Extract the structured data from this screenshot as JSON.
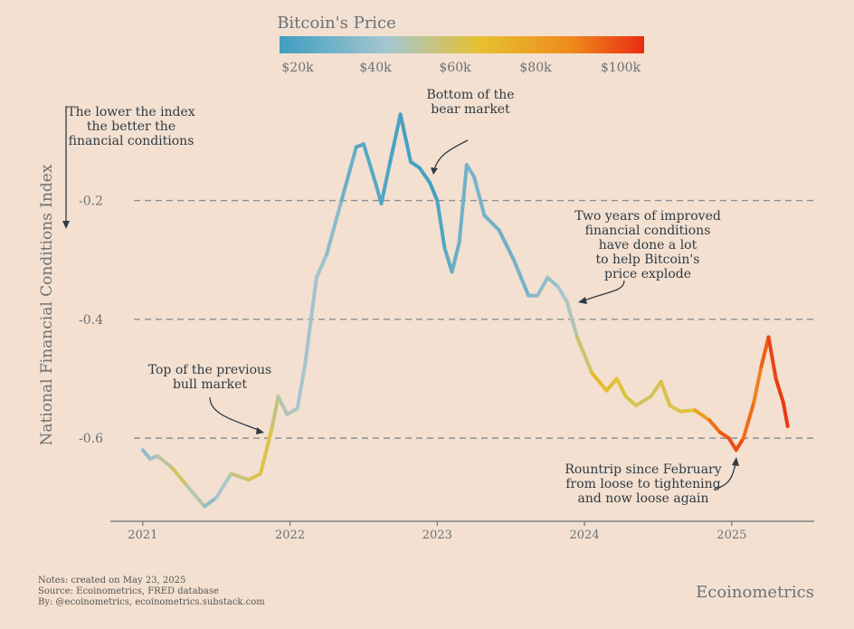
{
  "chart_data": {
    "type": "line",
    "title": "",
    "xlabel": "",
    "ylabel": "National Financial Conditions Index",
    "ylim": [
      -0.74,
      -0.03
    ],
    "xlim": [
      2020.78,
      2025.56
    ],
    "x_ticks": [
      "2021",
      "2022",
      "2023",
      "2024",
      "2025"
    ],
    "y_ticks": [
      "-0.2",
      "-0.4",
      "-0.6"
    ],
    "grid": "horizontal dashed at -0.2, -0.4, -0.6",
    "color_scale": {
      "title": "Bitcoin's Price",
      "labels": [
        "$20k",
        "$40k",
        "$60k",
        "$80k",
        "$100k"
      ],
      "colors": [
        "#3e9ec1",
        "#a6c6cf",
        "#e6c130",
        "#f08a1c",
        "#e92c11"
      ]
    },
    "series": [
      {
        "x": [
          2021.0,
          2021.05,
          2021.1,
          2021.2,
          2021.3,
          2021.42,
          2021.5,
          2021.6,
          2021.72,
          2021.8,
          2021.88,
          2021.92,
          2021.98,
          2022.05,
          2022.1,
          2022.18,
          2022.25,
          2022.35,
          2022.45,
          2022.5,
          2022.58,
          2022.62,
          2022.68,
          2022.75,
          2022.82,
          2022.88,
          2022.95,
          2023.0,
          2023.05,
          2023.1,
          2023.15,
          2023.2,
          2023.25,
          2023.32,
          2023.42,
          2023.52,
          2023.62,
          2023.68,
          2023.75,
          2023.82,
          2023.88,
          2023.95,
          2024.05,
          2024.15,
          2024.22,
          2024.28,
          2024.35,
          2024.45,
          2024.52,
          2024.58,
          2024.65,
          2024.75,
          2024.85,
          2024.92,
          2024.98,
          2025.03,
          2025.08,
          2025.15,
          2025.2,
          2025.25,
          2025.3,
          2025.35,
          2025.38
        ],
        "y": [
          -0.62,
          -0.635,
          -0.63,
          -0.65,
          -0.68,
          -0.715,
          -0.7,
          -0.66,
          -0.67,
          -0.66,
          -0.58,
          -0.53,
          -0.56,
          -0.55,
          -0.48,
          -0.33,
          -0.29,
          -0.2,
          -0.11,
          -0.105,
          -0.17,
          -0.205,
          -0.135,
          -0.055,
          -0.135,
          -0.145,
          -0.17,
          -0.2,
          -0.28,
          -0.32,
          -0.27,
          -0.14,
          -0.16,
          -0.225,
          -0.25,
          -0.3,
          -0.36,
          -0.36,
          -0.33,
          -0.345,
          -0.37,
          -0.43,
          -0.49,
          -0.52,
          -0.5,
          -0.53,
          -0.545,
          -0.53,
          -0.505,
          -0.545,
          -0.555,
          -0.553,
          -0.57,
          -0.59,
          -0.6,
          -0.62,
          -0.6,
          -0.54,
          -0.48,
          -0.43,
          -0.5,
          -0.54,
          -0.58
        ],
        "price_k": [
          32,
          36,
          40,
          55,
          58,
          34,
          35,
          47,
          58,
          62,
          60,
          46,
          45,
          42,
          38,
          40,
          37,
          30,
          21,
          20,
          23,
          20,
          19,
          17,
          17,
          18,
          16,
          17,
          22,
          24,
          26,
          28,
          30,
          28,
          27,
          26,
          30,
          34,
          35,
          37,
          42,
          45,
          66,
          70,
          64,
          62,
          60,
          57,
          60,
          62,
          60,
          65,
          90,
          95,
          100,
          102,
          100,
          85,
          90,
          103,
          105,
          106,
          108
        ]
      }
    ],
    "annotations": [
      {
        "id": "index",
        "lines": [
          "The lower the index",
          "the better the",
          "financial conditions"
        ]
      },
      {
        "id": "bottom",
        "lines": [
          "Bottom of the",
          "bear market"
        ]
      },
      {
        "id": "improved",
        "lines": [
          "Two years of improved",
          "financial conditions",
          "have done a lot",
          "to help Bitcoin's",
          "price explode"
        ]
      },
      {
        "id": "top",
        "lines": [
          "Top of the previous",
          "bull market"
        ]
      },
      {
        "id": "roundtrip",
        "lines": [
          "Rountrip since February",
          "from loose to tightening",
          "and now loose again"
        ]
      }
    ]
  },
  "footer": {
    "notes": "Notes: created on May 23, 2025",
    "source": "Source: Ecoinometrics, FRED database",
    "by": "By: @ecoinometrics, ecoinometrics.substack.com"
  },
  "brand": "Ecoinometrics"
}
